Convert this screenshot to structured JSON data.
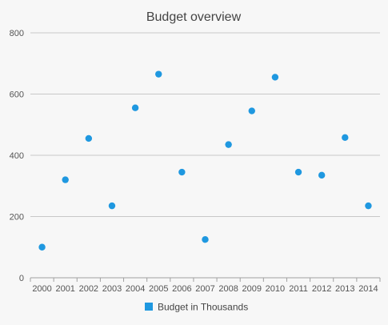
{
  "chart_data": {
    "type": "scatter",
    "title": "Budget overview",
    "xlabel": "",
    "ylabel": "",
    "categories": [
      "2000",
      "2001",
      "2002",
      "2003",
      "2004",
      "2005",
      "2006",
      "2007",
      "2008",
      "2009",
      "2010",
      "2011",
      "2012",
      "2013",
      "2014"
    ],
    "series": [
      {
        "name": "Budget in Thousands",
        "color": "#1f98e0",
        "values": [
          100,
          320,
          455,
          235,
          555,
          665,
          345,
          125,
          435,
          545,
          655,
          345,
          335,
          458,
          235
        ]
      }
    ],
    "ylim": [
      0,
      800
    ],
    "yticks": [
      "0",
      "200",
      "400",
      "600",
      "800"
    ],
    "grid": true,
    "legend_position": "bottom"
  }
}
